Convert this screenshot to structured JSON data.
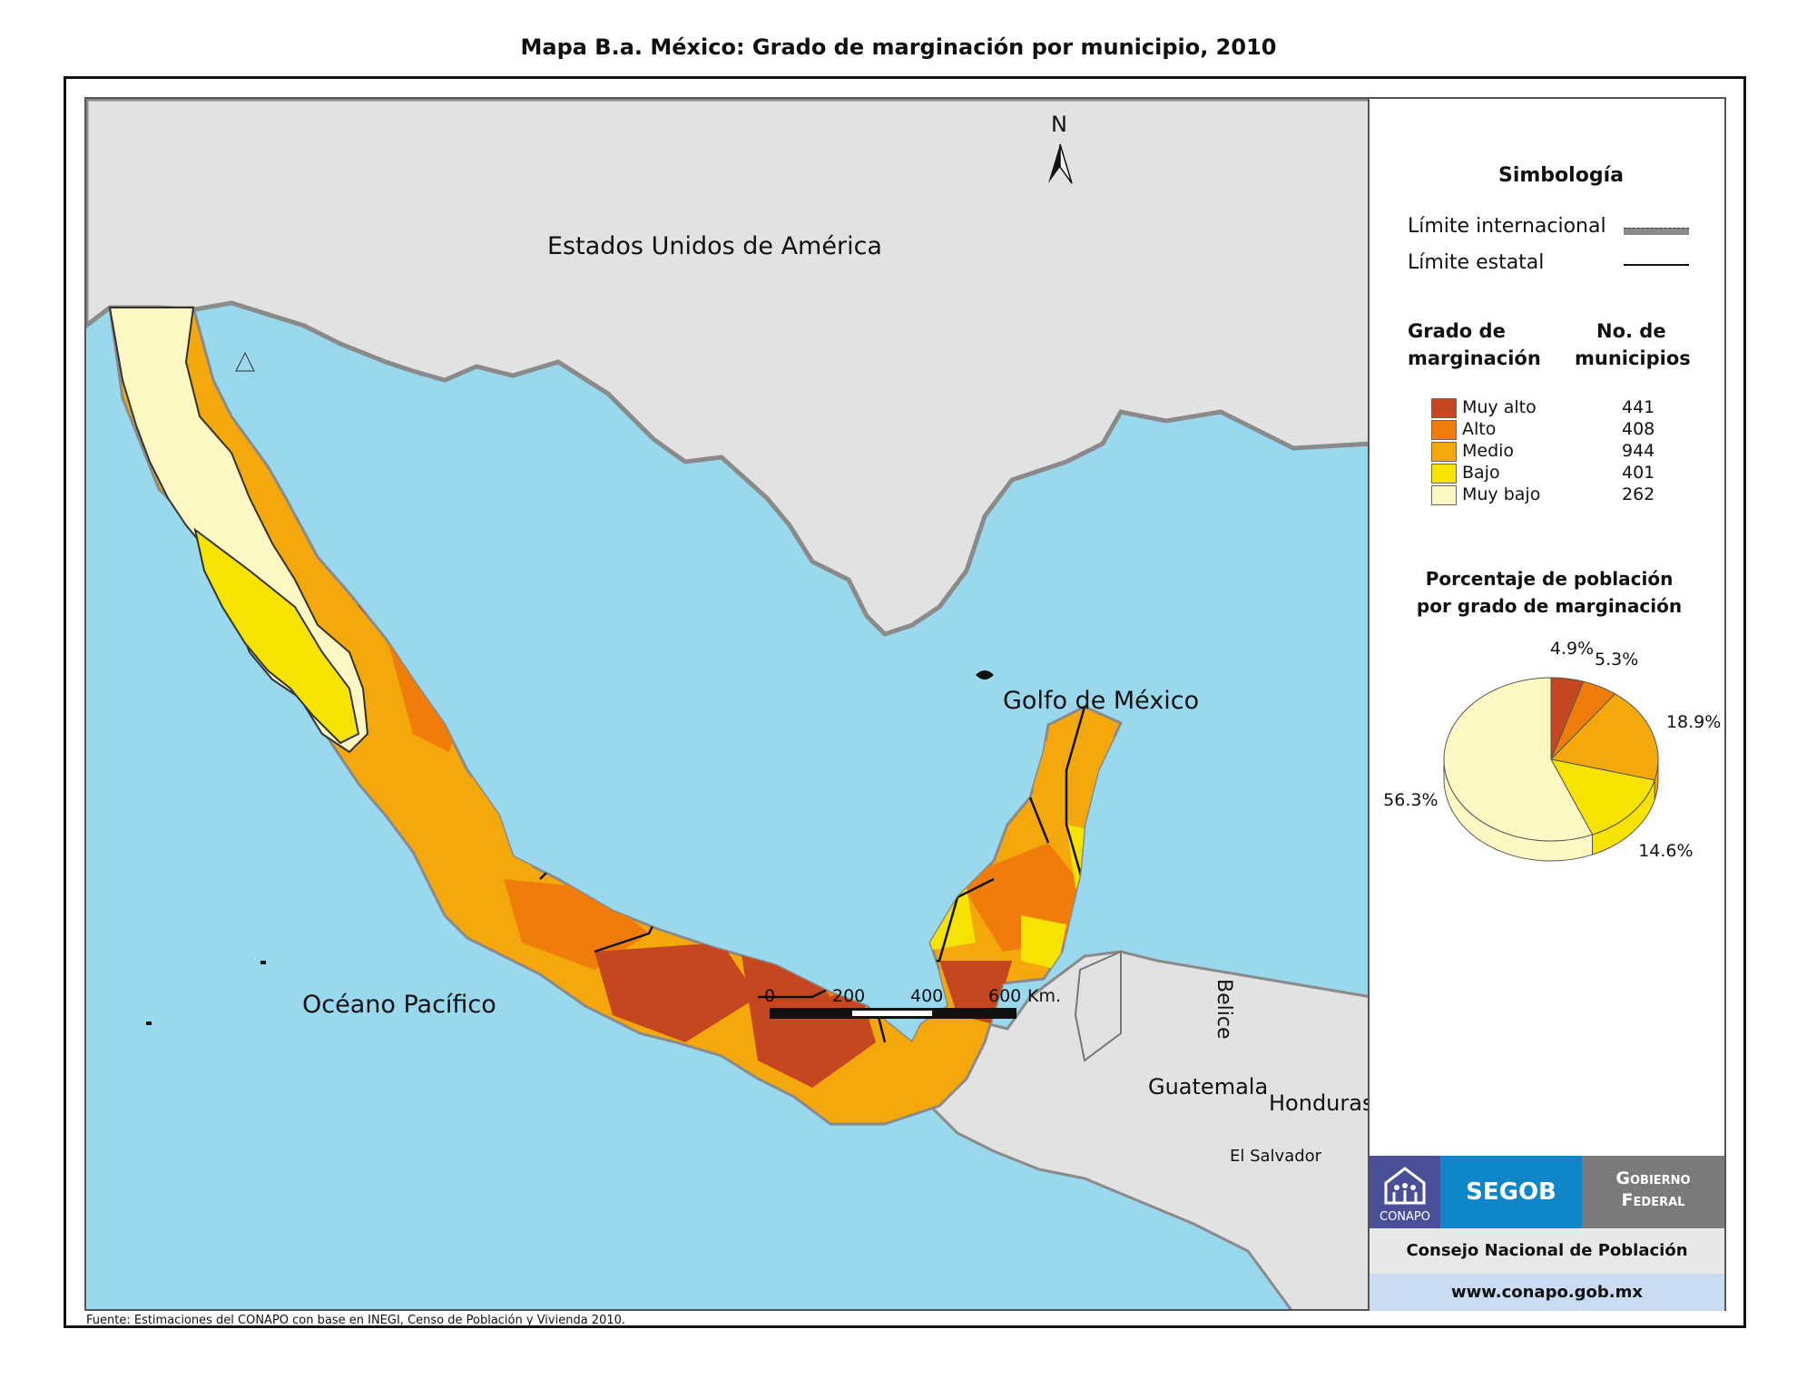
{
  "title": "Mapa B.a. México: Grado de marginación por municipio, 2010",
  "map_labels": {
    "usa": "Estados Unidos de América",
    "gulf": "Golfo de México",
    "pacific": "Océano Pacífico",
    "guatemala": "Guatemala",
    "honduras": "Honduras",
    "belize": "Belice",
    "el_salvador": "El Salvador",
    "north": "N"
  },
  "scale": {
    "ticks": [
      "0",
      "200",
      "400",
      "600"
    ],
    "unit": "Km."
  },
  "legend": {
    "heading": "Simbología",
    "intl_limit": "Límite internacional",
    "state_limit": "Límite estatal",
    "grade_header_1": "Grado de",
    "grade_header_2": "marginación",
    "count_header_1": "No. de",
    "count_header_2": "municipios",
    "classes": [
      {
        "label": "Muy alto",
        "count": "441",
        "color": "#c4471f"
      },
      {
        "label": "Alto",
        "count": "408",
        "color": "#f07d0a"
      },
      {
        "label": "Medio",
        "count": "944",
        "color": "#f5a80b"
      },
      {
        "label": "Bajo",
        "count": "401",
        "color": "#f7e300"
      },
      {
        "label": "Muy bajo",
        "count": "262",
        "color": "#fdf7c3"
      }
    ]
  },
  "chart_data": {
    "type": "pie",
    "title": "Porcentaje de población por grado de marginación",
    "categories": [
      "Muy alto",
      "Alto",
      "Medio",
      "Bajo",
      "Muy bajo"
    ],
    "values": [
      4.9,
      5.3,
      18.9,
      14.6,
      56.3
    ],
    "labels": [
      "4.9%",
      "5.3%",
      "18.9%",
      "14.6%",
      "56.3%"
    ],
    "colors": [
      "#c4471f",
      "#f07d0a",
      "#f5a80b",
      "#f7e300",
      "#fdf7c3"
    ]
  },
  "logos": {
    "conapo": "CONAPO",
    "segob": "SEGOB",
    "gobierno_1": "Gobierno",
    "gobierno_2": "Federal",
    "council": "Consejo Nacional de Población",
    "url": "www.conapo.gob.mx"
  },
  "source": "Fuente: Estimaciones del CONAPO con base en INEGI, Censo de Población y Vivienda 2010.",
  "colors": {
    "ocean": "#9ad8ee",
    "land_foreign": "#e2e2e2",
    "logo_conapo": "#4a4f9a",
    "logo_segob": "#0f86c9",
    "logo_gob": "#7a7a7a"
  }
}
